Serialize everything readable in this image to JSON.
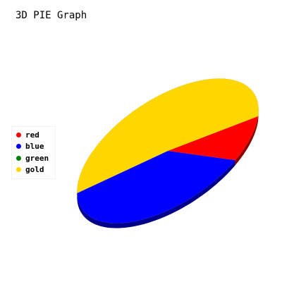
{
  "chart_data": {
    "type": "pie",
    "title": "3D PIE Graph",
    "categories": [
      "red",
      "blue",
      "green",
      "gold"
    ],
    "values": [
      10.0,
      38.0,
      0.0,
      52.0
    ],
    "colors": [
      "#ff0000",
      "#0000ff",
      "#008000",
      "#ffd700"
    ],
    "side_colors": [
      "#8b0000",
      "#00008b",
      "#004000",
      "#8b7500"
    ],
    "legend": "left",
    "three_d": true
  }
}
